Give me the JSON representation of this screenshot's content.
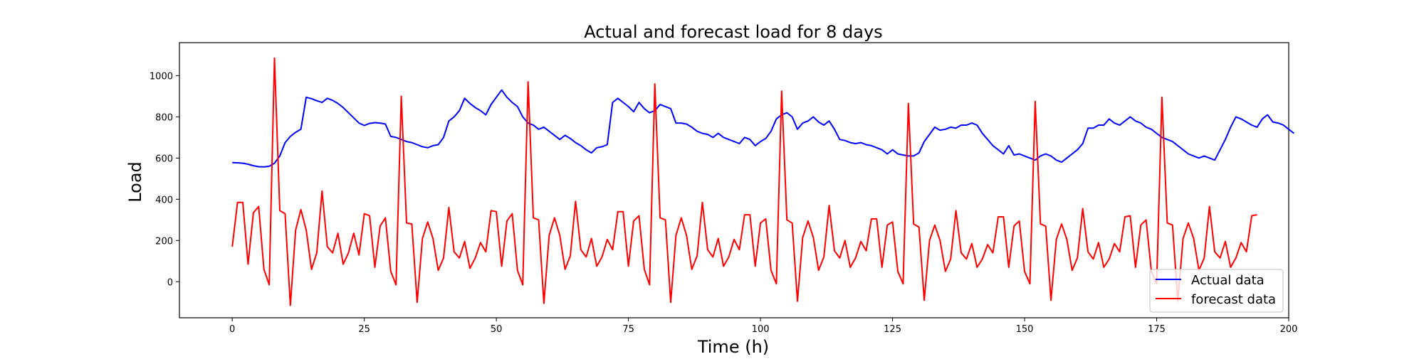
{
  "chart_data": {
    "type": "line",
    "title": "Actual and forecast load for 8 days",
    "xlabel": "Time (h)",
    "ylabel": "Load",
    "xlim": [
      -10,
      200
    ],
    "ylim": [
      -175,
      1160
    ],
    "x_ticks": [
      0,
      25,
      50,
      75,
      100,
      125,
      150,
      175,
      200
    ],
    "y_ticks": [
      0,
      200,
      400,
      600,
      800,
      1000
    ],
    "grid": false,
    "legend_position": "bottom-right",
    "series": [
      {
        "name": "Actual data",
        "color": "#0000ff",
        "x_start": 0,
        "x_step": 1,
        "values": [
          578,
          577,
          575,
          570,
          563,
          558,
          557,
          560,
          575,
          610,
          675,
          705,
          725,
          740,
          895,
          888,
          878,
          870,
          890,
          880,
          865,
          845,
          820,
          795,
          770,
          758,
          768,
          772,
          770,
          765,
          705,
          700,
          690,
          680,
          675,
          665,
          655,
          650,
          660,
          665,
          700,
          780,
          800,
          830,
          890,
          865,
          845,
          830,
          810,
          860,
          895,
          930,
          895,
          870,
          850,
          800,
          770,
          760,
          740,
          750,
          730,
          710,
          690,
          710,
          695,
          675,
          660,
          640,
          625,
          650,
          655,
          665,
          870,
          890,
          870,
          850,
          825,
          870,
          840,
          820,
          830,
          860,
          850,
          840,
          770,
          770,
          765,
          750,
          730,
          720,
          715,
          700,
          720,
          700,
          690,
          680,
          670,
          700,
          690,
          660,
          680,
          695,
          730,
          790,
          810,
          820,
          800,
          740,
          770,
          780,
          800,
          775,
          760,
          780,
          740,
          690,
          685,
          675,
          670,
          675,
          665,
          660,
          650,
          640,
          620,
          640,
          620,
          615,
          610,
          610,
          625,
          680,
          715,
          750,
          735,
          740,
          750,
          745,
          760,
          760,
          770,
          760,
          720,
          690,
          660,
          640,
          620,
          660,
          615,
          620,
          610,
          600,
          590,
          610,
          620,
          610,
          590,
          580,
          600,
          620,
          640,
          670,
          745,
          745,
          760,
          760,
          790,
          770,
          760,
          780,
          800,
          780,
          770,
          750,
          740,
          720,
          700,
          690,
          680,
          660,
          640,
          620,
          610,
          600,
          610,
          600,
          590,
          640,
          690,
          750,
          800,
          790,
          775,
          760,
          750,
          790,
          810,
          775,
          770,
          760,
          740,
          720
        ]
      },
      {
        "name": "forecast data",
        "color": "#ff0000",
        "x_start": 0,
        "x_step": 1,
        "values": [
          170,
          385,
          385,
          85,
          335,
          365,
          60,
          -15,
          1085,
          345,
          330,
          -115,
          250,
          350,
          250,
          60,
          140,
          440,
          170,
          140,
          235,
          85,
          140,
          235,
          130,
          330,
          320,
          70,
          270,
          310,
          50,
          -15,
          900,
          285,
          280,
          -100,
          210,
          290,
          210,
          55,
          115,
          360,
          145,
          115,
          195,
          65,
          115,
          190,
          145,
          345,
          340,
          75,
          295,
          330,
          55,
          -15,
          970,
          310,
          300,
          -105,
          225,
          310,
          225,
          60,
          125,
          390,
          155,
          120,
          210,
          75,
          120,
          205,
          155,
          340,
          340,
          75,
          295,
          320,
          60,
          -15,
          960,
          310,
          300,
          -100,
          225,
          310,
          225,
          60,
          125,
          385,
          155,
          120,
          210,
          75,
          120,
          205,
          155,
          325,
          325,
          75,
          285,
          305,
          55,
          -10,
          925,
          300,
          285,
          -95,
          215,
          295,
          215,
          55,
          120,
          370,
          150,
          115,
          200,
          70,
          115,
          195,
          150,
          305,
          305,
          70,
          275,
          290,
          50,
          -10,
          865,
          280,
          265,
          -90,
          200,
          275,
          200,
          50,
          110,
          345,
          140,
          110,
          185,
          70,
          110,
          180,
          140,
          315,
          315,
          70,
          270,
          295,
          50,
          -10,
          875,
          280,
          270,
          -90,
          205,
          280,
          205,
          55,
          115,
          355,
          145,
          110,
          190,
          70,
          110,
          185,
          145,
          315,
          320,
          70,
          275,
          300,
          50,
          -10,
          895,
          285,
          275,
          -95,
          210,
          285,
          210,
          55,
          115,
          365,
          145,
          115,
          195,
          70,
          115,
          190,
          145,
          320,
          325
        ]
      }
    ]
  }
}
